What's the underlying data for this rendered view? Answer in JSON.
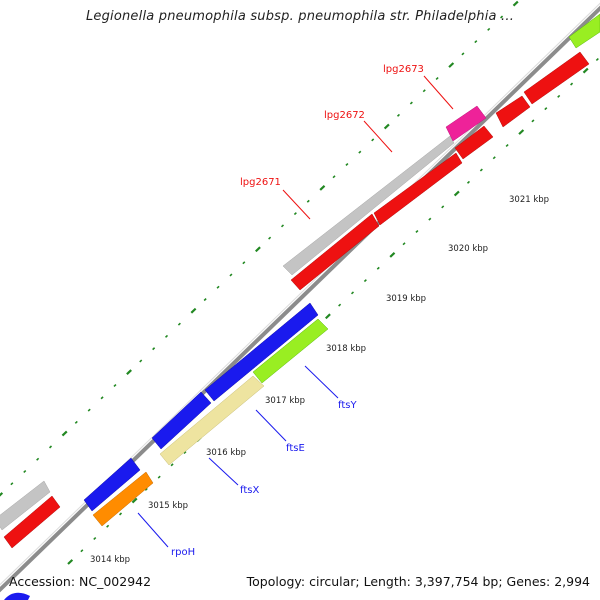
{
  "title": "Legionella pneumophila subsp. pneumophila str. Philadelphia ...",
  "footer": {
    "accession": "Accession: NC_002942",
    "summary": "Topology: circular; Length: 3,397,754 bp; Genes: 2,994"
  },
  "colors": {
    "ftsY": "#99ee22",
    "ftsE": "#eee4a0",
    "ftsX": "#1a1aee",
    "rpoH": "#ff8c00",
    "lpg": "#ee1111",
    "pink": "#ee2299",
    "grey": "#c4c4c4",
    "tick": "#228822",
    "backbone": "#8c8c8c",
    "gene_label_blue": "#1a1aee",
    "gene_label_red": "#ee1111"
  },
  "gene_labels": [
    {
      "name": "lpg2673",
      "color": "red"
    },
    {
      "name": "lpg2672",
      "color": "red"
    },
    {
      "name": "lpg2671",
      "color": "red"
    },
    {
      "name": "ftsY",
      "color": "blue"
    },
    {
      "name": "ftsE",
      "color": "blue"
    },
    {
      "name": "ftsX",
      "color": "blue"
    },
    {
      "name": "rpoH",
      "color": "blue"
    }
  ],
  "kbp_labels": [
    "3021 kbp",
    "3020 kbp",
    "3019 kbp",
    "3018 kbp",
    "3017 kbp",
    "3016 kbp",
    "3015 kbp",
    "3014 kbp"
  ]
}
